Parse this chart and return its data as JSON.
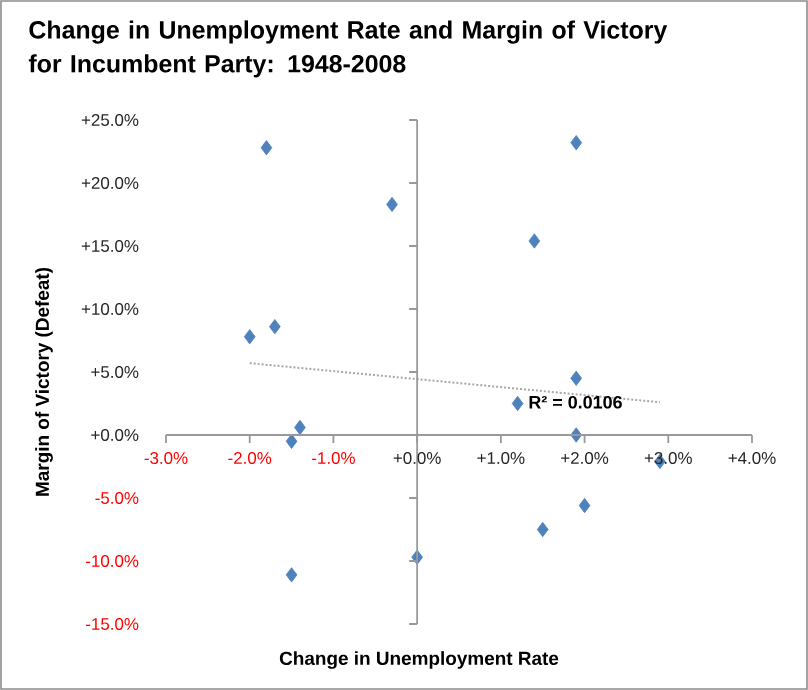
{
  "chart_data": {
    "type": "scatter",
    "title": "Change in Unemployment Rate and Margin of Victory for Incumbent Party: 1948-2008",
    "xlabel": "Change in Unemployment Rate",
    "ylabel": "Margin of Victory (Defeat)",
    "annotations": [
      {
        "text": "R² = 0.0106",
        "x": 1.3,
        "y": 2.6
      }
    ],
    "xlim": [
      -3,
      4
    ],
    "ylim": [
      -15,
      25
    ],
    "xticks": [
      {
        "value": -3,
        "label": "-3.0%"
      },
      {
        "value": -2,
        "label": "-2.0%"
      },
      {
        "value": -1,
        "label": "-1.0%"
      },
      {
        "value": 0,
        "label": "+0.0%"
      },
      {
        "value": 1,
        "label": "+1.0%"
      },
      {
        "value": 2,
        "label": "+2.0%"
      },
      {
        "value": 3,
        "label": "+3.0%"
      },
      {
        "value": 4,
        "label": "+4.0%"
      }
    ],
    "yticks": [
      {
        "value": -15,
        "label": "-15.0%"
      },
      {
        "value": -10,
        "label": "-10.0%"
      },
      {
        "value": -5,
        "label": "-5.0%"
      },
      {
        "value": 0,
        "label": "+0.0%"
      },
      {
        "value": 5,
        "label": "+5.0%"
      },
      {
        "value": 10,
        "label": "+10.0%"
      },
      {
        "value": 15,
        "label": "+15.0%"
      },
      {
        "value": 20,
        "label": "+20.0%"
      },
      {
        "value": 25,
        "label": "+25.0%"
      }
    ],
    "marker": "diamond",
    "series": [
      {
        "color": "#4f81bd",
        "x": [
          -1.8,
          -0.3,
          1.9,
          1.4,
          -2.0,
          -1.7,
          1.9,
          1.2,
          -1.4,
          -1.5,
          1.9,
          2.9,
          2.0,
          1.5,
          0.0,
          -1.5
        ],
        "values": [
          22.8,
          18.3,
          23.2,
          15.4,
          7.8,
          8.6,
          4.5,
          2.5,
          0.6,
          -0.5,
          0.0,
          -2.1,
          -5.6,
          -7.5,
          -9.7,
          -11.1
        ]
      },
      {
        "type": "line",
        "color": "#a6a6a6",
        "line_style": "dotted",
        "marker": "none",
        "x": [
          -2.0,
          2.9
        ],
        "values": [
          5.7,
          2.6
        ]
      }
    ]
  }
}
